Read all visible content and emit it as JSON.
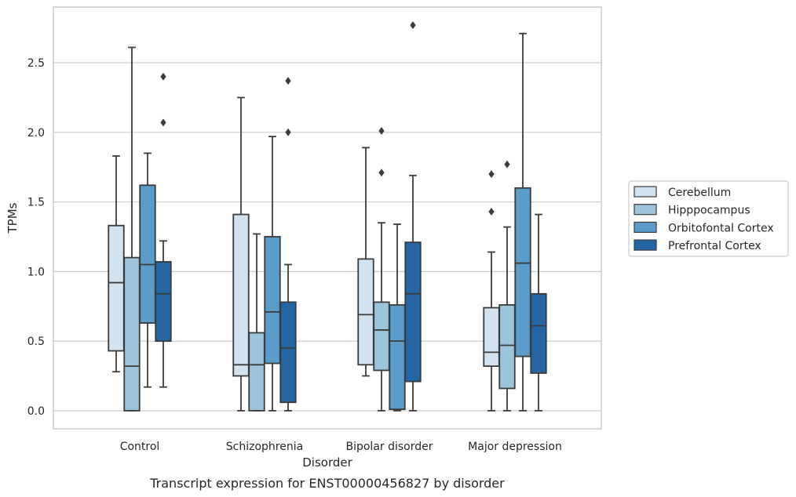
{
  "caption": "Transcript expression for ENST00000456827 by disorder",
  "chart_data": {
    "type": "box",
    "xlabel": "Disorder",
    "ylabel": "TPMs",
    "ylim": [
      -0.13,
      2.9
    ],
    "yticks": [
      "0.0",
      "0.5",
      "1.0",
      "1.5",
      "2.0",
      "2.5"
    ],
    "grid": "horizontal",
    "legend_position": "right",
    "categories": [
      "Control",
      "Schizophrenia",
      "Bipolar disorder",
      "Major depression"
    ],
    "series": [
      {
        "name": "Cerebellum",
        "color": "#d1e2f1",
        "boxes": [
          {
            "whislo": 0.28,
            "q1": 0.43,
            "med": 0.92,
            "q3": 1.33,
            "whishi": 1.83,
            "fliers": []
          },
          {
            "whislo": 0.0,
            "q1": 0.25,
            "med": 0.33,
            "q3": 1.41,
            "whishi": 2.25,
            "fliers": []
          },
          {
            "whislo": 0.25,
            "q1": 0.33,
            "med": 0.69,
            "q3": 1.09,
            "whishi": 1.89,
            "fliers": []
          },
          {
            "whislo": 0.0,
            "q1": 0.32,
            "med": 0.42,
            "q3": 0.74,
            "whishi": 1.14,
            "fliers": [
              1.43,
              1.7
            ]
          }
        ]
      },
      {
        "name": "Hipppocampus",
        "color": "#9bc4dd",
        "boxes": [
          {
            "whislo": 0.0,
            "q1": 0.0,
            "med": 0.32,
            "q3": 1.1,
            "whishi": 2.61,
            "fliers": []
          },
          {
            "whislo": 0.0,
            "q1": 0.0,
            "med": 0.33,
            "q3": 0.56,
            "whishi": 1.27,
            "fliers": []
          },
          {
            "whislo": 0.0,
            "q1": 0.29,
            "med": 0.58,
            "q3": 0.78,
            "whishi": 1.35,
            "fliers": [
              1.71,
              2.01
            ]
          },
          {
            "whislo": 0.0,
            "q1": 0.16,
            "med": 0.47,
            "q3": 0.76,
            "whishi": 1.32,
            "fliers": [
              1.77
            ]
          }
        ]
      },
      {
        "name": "Orbitofontal Cortex",
        "color": "#5a9dcb",
        "boxes": [
          {
            "whislo": 0.17,
            "q1": 0.63,
            "med": 1.05,
            "q3": 1.62,
            "whishi": 1.85,
            "fliers": []
          },
          {
            "whislo": 0.0,
            "q1": 0.34,
            "med": 0.71,
            "q3": 1.25,
            "whishi": 1.97,
            "fliers": []
          },
          {
            "whislo": 0.0,
            "q1": 0.01,
            "med": 0.5,
            "q3": 0.76,
            "whishi": 1.34,
            "fliers": []
          },
          {
            "whislo": 0.0,
            "q1": 0.39,
            "med": 1.06,
            "q3": 1.6,
            "whishi": 2.71,
            "fliers": []
          }
        ]
      },
      {
        "name": "Prefrontal Cortex",
        "color": "#2466a4",
        "boxes": [
          {
            "whislo": 0.17,
            "q1": 0.5,
            "med": 0.84,
            "q3": 1.07,
            "whishi": 1.22,
            "fliers": [
              2.07,
              2.4
            ]
          },
          {
            "whislo": 0.0,
            "q1": 0.06,
            "med": 0.45,
            "q3": 0.78,
            "whishi": 1.05,
            "fliers": [
              2.0,
              2.37
            ]
          },
          {
            "whislo": 0.0,
            "q1": 0.21,
            "med": 0.84,
            "q3": 1.21,
            "whishi": 1.69,
            "fliers": [
              2.77
            ]
          },
          {
            "whislo": 0.0,
            "q1": 0.27,
            "med": 0.61,
            "q3": 0.84,
            "whishi": 1.41,
            "fliers": []
          }
        ]
      }
    ]
  },
  "colors": {
    "edge": "#3b3b3b",
    "grid": "#cccccc",
    "frame": "#cccccc",
    "text": "#262626"
  }
}
